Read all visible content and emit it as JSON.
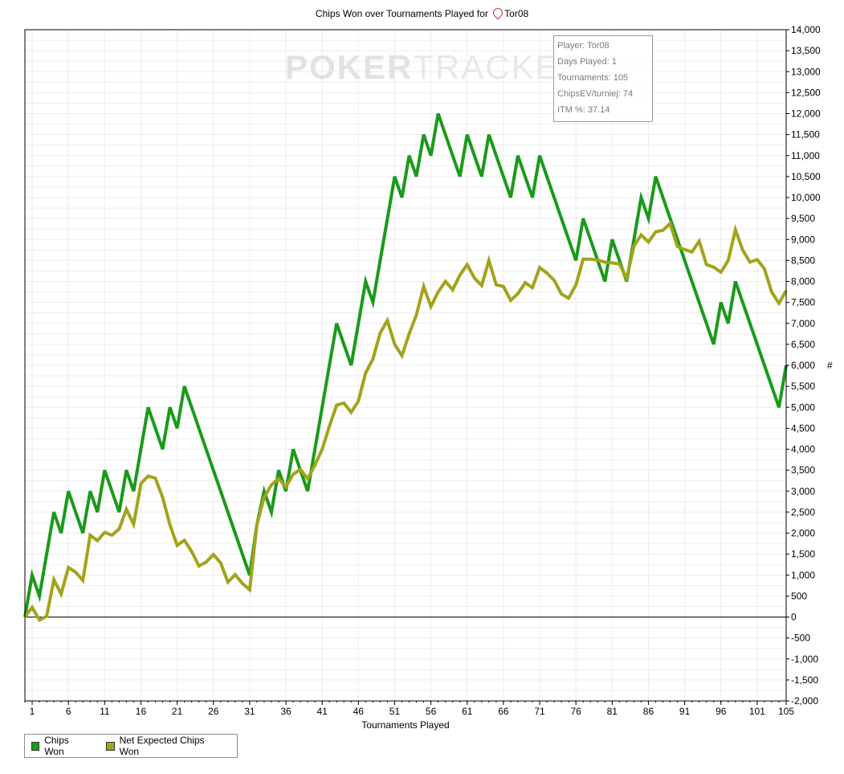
{
  "chart_data": {
    "type": "line",
    "title": "Chips Won over Tournaments Played for",
    "player_tag": "Tor08",
    "xlabel": "Tournaments Played",
    "ylabel": "#",
    "xlim": [
      0,
      105
    ],
    "ylim": [
      -2000,
      14000
    ],
    "x_ticks": [
      1,
      6,
      11,
      16,
      21,
      26,
      31,
      36,
      41,
      46,
      51,
      56,
      61,
      66,
      71,
      76,
      81,
      86,
      91,
      96,
      101,
      105
    ],
    "y_ticks": [
      -2000,
      -1500,
      -1000,
      -500,
      0,
      500,
      1000,
      1500,
      2000,
      2500,
      3000,
      3500,
      4000,
      4500,
      5000,
      5500,
      6000,
      6500,
      7000,
      7500,
      8000,
      8500,
      9000,
      9500,
      10000,
      10500,
      11000,
      11500,
      12000,
      12500,
      13000,
      13500,
      14000
    ],
    "y_tick_labels": [
      "-2,000",
      "-1,500",
      "-1,000",
      "-500",
      "0",
      "500",
      "1,000",
      "1,500",
      "2,000",
      "2,500",
      "3,000",
      "3,500",
      "4,000",
      "4,500",
      "5,000",
      "5,500",
      "6,000",
      "6,500",
      "7,000",
      "7,500",
      "8,000",
      "8,500",
      "9,000",
      "9,500",
      "10,000",
      "10,500",
      "11,000",
      "11,500",
      "12,000",
      "12,500",
      "13,000",
      "13,500",
      "14,000"
    ],
    "grid": true,
    "y_axis_side": "right",
    "legend_position": "bottom-left",
    "series": [
      {
        "name": "Chips Won",
        "color": "#1a9a1a",
        "points": [
          [
            0,
            0
          ],
          [
            1,
            1000
          ],
          [
            2,
            500
          ],
          [
            4,
            2500
          ],
          [
            5,
            2000
          ],
          [
            6,
            3000
          ],
          [
            8,
            2000
          ],
          [
            9,
            3000
          ],
          [
            10,
            2500
          ],
          [
            11,
            3500
          ],
          [
            13,
            2500
          ],
          [
            14,
            3500
          ],
          [
            15,
            3000
          ],
          [
            17,
            5000
          ],
          [
            19,
            4000
          ],
          [
            20,
            5000
          ],
          [
            21,
            4500
          ],
          [
            22,
            5500
          ],
          [
            31,
            1000
          ],
          [
            32,
            2200
          ],
          [
            33,
            3000
          ],
          [
            34,
            2500
          ],
          [
            35,
            3500
          ],
          [
            36,
            3000
          ],
          [
            37,
            4000
          ],
          [
            39,
            3000
          ],
          [
            43,
            7000
          ],
          [
            45,
            6000
          ],
          [
            47,
            8000
          ],
          [
            48,
            7500
          ],
          [
            51,
            10500
          ],
          [
            52,
            10000
          ],
          [
            53,
            11000
          ],
          [
            54,
            10500
          ],
          [
            55,
            11500
          ],
          [
            56,
            11000
          ],
          [
            57,
            12000
          ],
          [
            60,
            10500
          ],
          [
            61,
            11500
          ],
          [
            63,
            10500
          ],
          [
            64,
            11500
          ],
          [
            67,
            10000
          ],
          [
            68,
            11000
          ],
          [
            70,
            10000
          ],
          [
            71,
            11000
          ],
          [
            76,
            8500
          ],
          [
            77,
            9500
          ],
          [
            80,
            8000
          ],
          [
            81,
            9000
          ],
          [
            83,
            8000
          ],
          [
            85,
            10000
          ],
          [
            86,
            9500
          ],
          [
            87,
            10500
          ],
          [
            95,
            6500
          ],
          [
            96,
            7500
          ],
          [
            97,
            7000
          ],
          [
            98,
            8000
          ],
          [
            104,
            5000
          ],
          [
            105,
            6000
          ]
        ]
      },
      {
        "name": "Net Expected Chips Won",
        "color": "#a3a31c",
        "points": [
          [
            0,
            0
          ],
          [
            1,
            230
          ],
          [
            2,
            -70
          ],
          [
            3,
            20
          ],
          [
            4,
            890
          ],
          [
            5,
            550
          ],
          [
            6,
            1180
          ],
          [
            7,
            1070
          ],
          [
            8,
            870
          ],
          [
            9,
            1950
          ],
          [
            10,
            1820
          ],
          [
            11,
            2020
          ],
          [
            12,
            1950
          ],
          [
            13,
            2100
          ],
          [
            14,
            2570
          ],
          [
            15,
            2210
          ],
          [
            16,
            3180
          ],
          [
            17,
            3360
          ],
          [
            18,
            3310
          ],
          [
            19,
            2850
          ],
          [
            20,
            2200
          ],
          [
            21,
            1710
          ],
          [
            22,
            1830
          ],
          [
            23,
            1560
          ],
          [
            24,
            1220
          ],
          [
            25,
            1310
          ],
          [
            26,
            1490
          ],
          [
            27,
            1290
          ],
          [
            28,
            830
          ],
          [
            29,
            1010
          ],
          [
            30,
            800
          ],
          [
            31,
            650
          ],
          [
            32,
            2200
          ],
          [
            33,
            2850
          ],
          [
            34,
            3150
          ],
          [
            35,
            3300
          ],
          [
            36,
            3100
          ],
          [
            37,
            3400
          ],
          [
            38,
            3520
          ],
          [
            39,
            3300
          ],
          [
            40,
            3620
          ],
          [
            41,
            4000
          ],
          [
            42,
            4550
          ],
          [
            43,
            5050
          ],
          [
            44,
            5100
          ],
          [
            45,
            4880
          ],
          [
            46,
            5150
          ],
          [
            47,
            5820
          ],
          [
            48,
            6150
          ],
          [
            49,
            6770
          ],
          [
            50,
            7070
          ],
          [
            51,
            6500
          ],
          [
            52,
            6230
          ],
          [
            53,
            6750
          ],
          [
            54,
            7200
          ],
          [
            55,
            7880
          ],
          [
            56,
            7400
          ],
          [
            57,
            7750
          ],
          [
            58,
            8000
          ],
          [
            59,
            7800
          ],
          [
            60,
            8150
          ],
          [
            61,
            8400
          ],
          [
            62,
            8080
          ],
          [
            63,
            7900
          ],
          [
            64,
            8500
          ],
          [
            65,
            7920
          ],
          [
            66,
            7880
          ],
          [
            67,
            7550
          ],
          [
            68,
            7710
          ],
          [
            69,
            7970
          ],
          [
            70,
            7850
          ],
          [
            71,
            8330
          ],
          [
            72,
            8200
          ],
          [
            73,
            8030
          ],
          [
            74,
            7700
          ],
          [
            75,
            7600
          ],
          [
            76,
            7920
          ],
          [
            77,
            8530
          ],
          [
            78,
            8530
          ],
          [
            79,
            8510
          ],
          [
            80,
            8460
          ],
          [
            81,
            8440
          ],
          [
            82,
            8420
          ],
          [
            83,
            8070
          ],
          [
            84,
            8840
          ],
          [
            85,
            9110
          ],
          [
            86,
            8940
          ],
          [
            87,
            9180
          ],
          [
            88,
            9220
          ],
          [
            89,
            9380
          ],
          [
            90,
            8830
          ],
          [
            91,
            8760
          ],
          [
            92,
            8700
          ],
          [
            93,
            8960
          ],
          [
            94,
            8400
          ],
          [
            95,
            8340
          ],
          [
            96,
            8220
          ],
          [
            97,
            8500
          ],
          [
            98,
            9230
          ],
          [
            99,
            8750
          ],
          [
            100,
            8460
          ],
          [
            101,
            8520
          ],
          [
            102,
            8300
          ],
          [
            103,
            7750
          ],
          [
            104,
            7480
          ],
          [
            105,
            7780
          ]
        ]
      }
    ]
  },
  "info_box": {
    "lines": [
      "Player: Tor08",
      "Days Played: 1",
      "Tournaments: 105",
      "ChipsEV/turniej: 74",
      "ITM %: 37.14"
    ]
  },
  "watermark": {
    "part1": "POKER",
    "part2": "TRACKER"
  },
  "legend": {
    "items": [
      {
        "label": "Chips Won",
        "color": "#1a9a1a"
      },
      {
        "label": "Net Expected Chips Won",
        "color": "#a3a31c"
      }
    ]
  }
}
